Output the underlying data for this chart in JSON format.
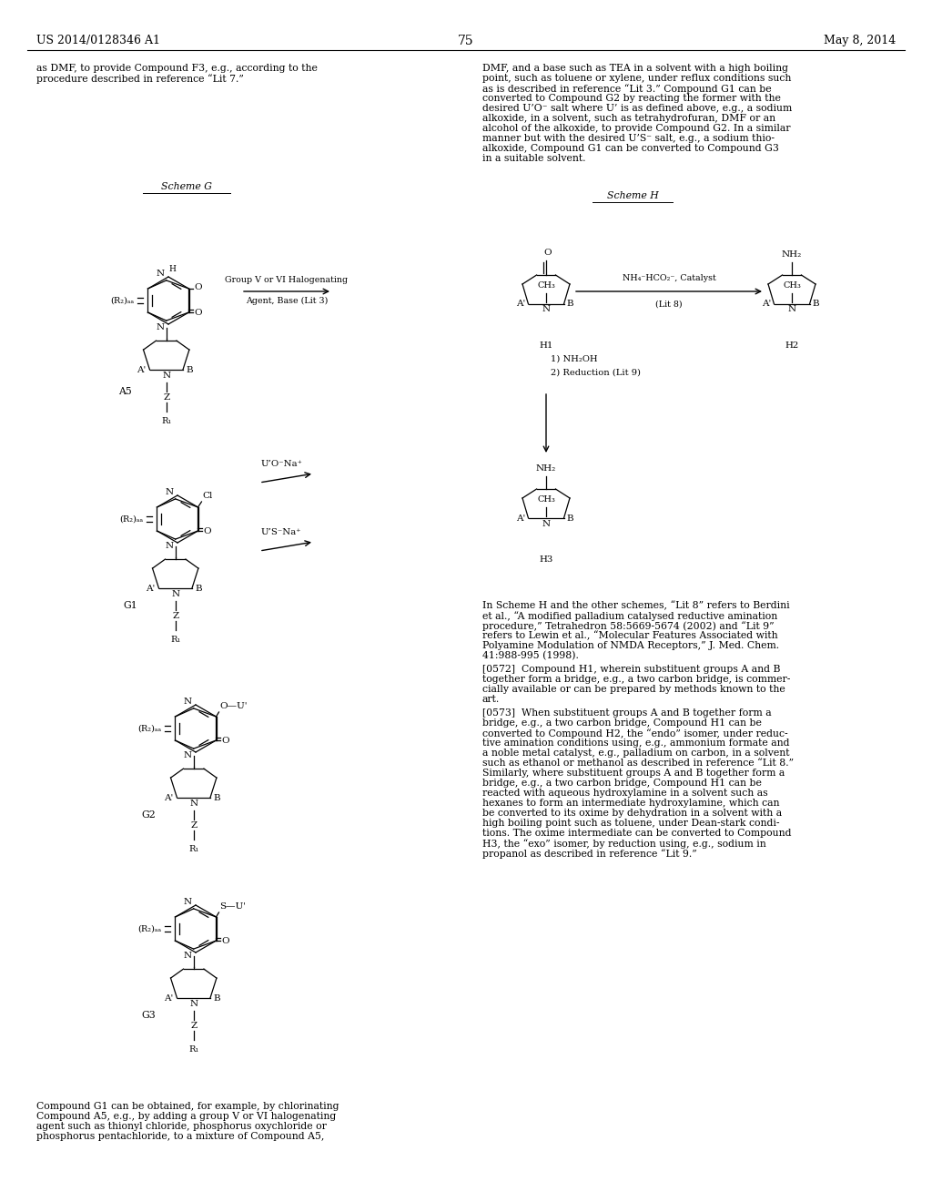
{
  "page_header_left": "US 2014/0128346 A1",
  "page_header_right": "May 8, 2014",
  "page_number": "75",
  "background_color": "#ffffff",
  "text_color": "#000000"
}
